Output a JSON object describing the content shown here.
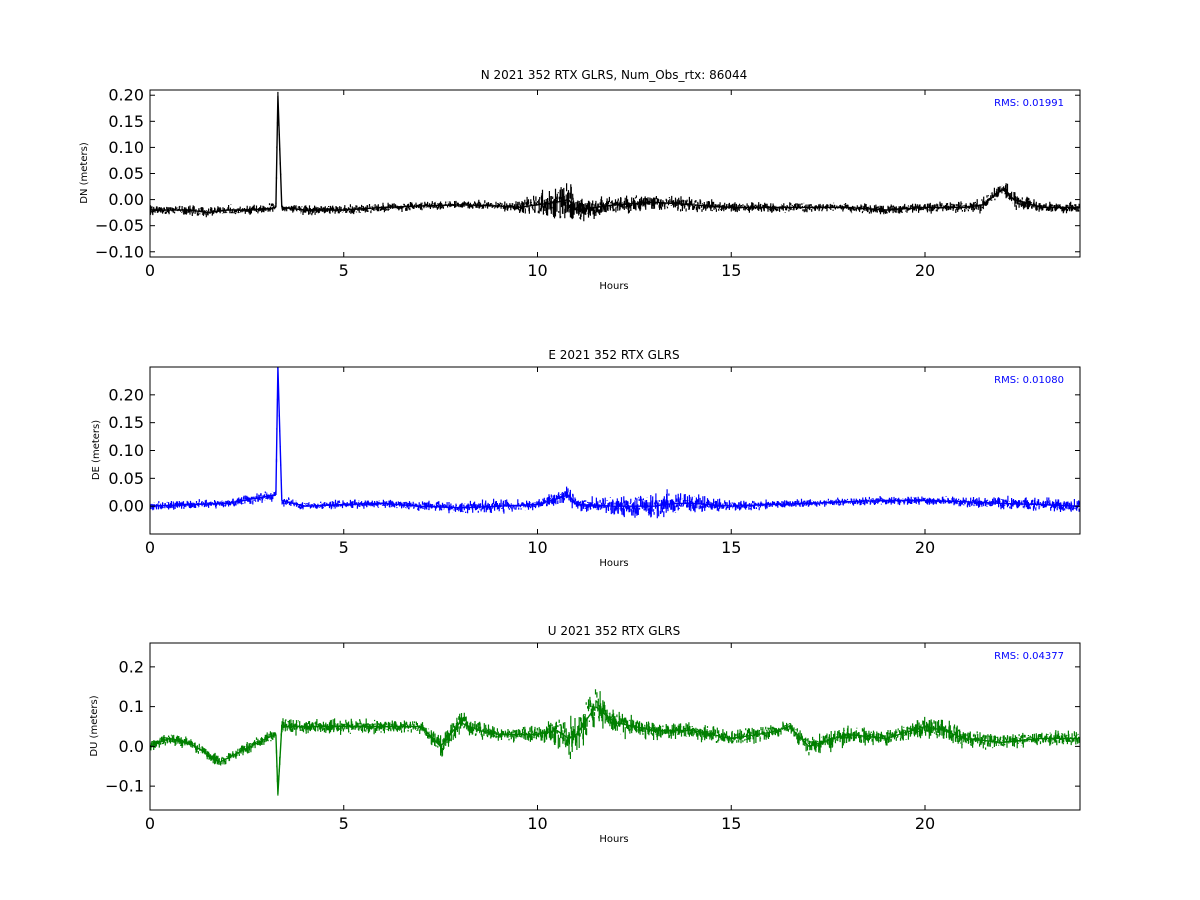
{
  "chart_data": [
    {
      "type": "line",
      "title": "N 2021 352 RTX  GLRS, Num_Obs_rtx: 86044",
      "xlabel": "Hours",
      "ylabel": "DN (meters)",
      "xlim": [
        0,
        24
      ],
      "ylim": [
        -0.11,
        0.21
      ],
      "xticks": [
        0,
        5,
        10,
        15,
        20
      ],
      "yticks": [
        -0.1,
        -0.05,
        0.0,
        0.05,
        0.1,
        0.15,
        0.2
      ],
      "ytick_labels": [
        "−0.10",
        "−0.05",
        "0.00",
        "0.05",
        "0.10",
        "0.15",
        "0.20"
      ],
      "annotation": "RMS:  0.01991",
      "color": "#000000",
      "grid": false,
      "series": [
        {
          "x": [
            0,
            0.5,
            1,
            1.5,
            2,
            2.5,
            3,
            3.25,
            3.3,
            3.4,
            4,
            4.5,
            5,
            6,
            7,
            8,
            9,
            9.5,
            10,
            10.5,
            10.8,
            11,
            11.5,
            12,
            13,
            14,
            15,
            16,
            17,
            18,
            19,
            20,
            21,
            21.5,
            22,
            22.3,
            23,
            24
          ],
          "y": [
            -0.02,
            -0.02,
            -0.02,
            -0.025,
            -0.02,
            -0.02,
            -0.018,
            -0.015,
            0.2,
            -0.015,
            -0.02,
            -0.02,
            -0.02,
            -0.015,
            -0.012,
            -0.01,
            -0.012,
            -0.015,
            -0.01,
            -0.005,
            0.0,
            -0.02,
            -0.015,
            -0.01,
            -0.005,
            -0.01,
            -0.015,
            -0.015,
            -0.015,
            -0.015,
            -0.02,
            -0.015,
            -0.015,
            -0.01,
            0.02,
            0.0,
            -0.015,
            -0.015
          ],
          "spread": [
            0.012,
            0.012,
            0.013,
            0.013,
            0.012,
            0.012,
            0.012,
            0.012,
            0.01,
            0.012,
            0.012,
            0.012,
            0.012,
            0.012,
            0.012,
            0.012,
            0.012,
            0.015,
            0.03,
            0.04,
            0.055,
            0.03,
            0.025,
            0.022,
            0.02,
            0.017,
            0.013,
            0.012,
            0.012,
            0.012,
            0.013,
            0.013,
            0.015,
            0.018,
            0.02,
            0.025,
            0.013,
            0.013
          ]
        }
      ]
    },
    {
      "type": "line",
      "title": "E 2021 352 RTX  GLRS",
      "xlabel": "Hours",
      "ylabel": "DE (meters)",
      "xlim": [
        0,
        24
      ],
      "ylim": [
        -0.05,
        0.25
      ],
      "xticks": [
        0,
        5,
        10,
        15,
        20
      ],
      "yticks": [
        0.0,
        0.05,
        0.1,
        0.15,
        0.2
      ],
      "ytick_labels": [
        "0.00",
        "0.05",
        "0.10",
        "0.15",
        "0.20"
      ],
      "annotation": "RMS:  0.01080",
      "color": "#0000ff",
      "grid": false,
      "series": [
        {
          "x": [
            0,
            1,
            2,
            2.8,
            3.25,
            3.3,
            3.4,
            4,
            5,
            6,
            7,
            8,
            9,
            10,
            10.8,
            11,
            12,
            13,
            13.5,
            14,
            15,
            16,
            17,
            18,
            19,
            20,
            21,
            22,
            23,
            24
          ],
          "y": [
            0.0,
            0.003,
            0.005,
            0.015,
            0.02,
            0.25,
            0.01,
            0.0,
            0.003,
            0.005,
            0.0,
            -0.003,
            0.0,
            0.003,
            0.02,
            0.003,
            0.0,
            0.0,
            0.005,
            0.005,
            0.0,
            0.003,
            0.005,
            0.008,
            0.01,
            0.01,
            0.008,
            0.005,
            0.003,
            0.0
          ],
          "spread": [
            0.012,
            0.01,
            0.01,
            0.012,
            0.012,
            0.01,
            0.012,
            0.01,
            0.01,
            0.01,
            0.012,
            0.015,
            0.015,
            0.012,
            0.02,
            0.015,
            0.02,
            0.03,
            0.03,
            0.022,
            0.012,
            0.01,
            0.01,
            0.01,
            0.01,
            0.01,
            0.012,
            0.015,
            0.015,
            0.015
          ]
        }
      ]
    },
    {
      "type": "line",
      "title": "U 2021 352 RTX  GLRS",
      "xlabel": "Hours",
      "ylabel": "DU (meters)",
      "xlim": [
        0,
        24
      ],
      "ylim": [
        -0.16,
        0.26
      ],
      "xticks": [
        0,
        5,
        10,
        15,
        20
      ],
      "yticks": [
        -0.1,
        0.0,
        0.1,
        0.2
      ],
      "ytick_labels": [
        "−0.1",
        "0.0",
        "0.1",
        "0.2"
      ],
      "annotation": "RMS:  0.04377",
      "color": "#008000",
      "grid": false,
      "series": [
        {
          "x": [
            0,
            0.5,
            1,
            1.5,
            1.8,
            2.2,
            2.6,
            3.0,
            3.25,
            3.3,
            3.4,
            4,
            5,
            6,
            7,
            7.5,
            8,
            8.5,
            9,
            10,
            10.5,
            10.8,
            11,
            11.5,
            12,
            13,
            14,
            15,
            16,
            16.5,
            17,
            18,
            19,
            20,
            20.5,
            21,
            22,
            23,
            24
          ],
          "y": [
            0.0,
            0.02,
            0.01,
            -0.02,
            -0.04,
            -0.02,
            0.0,
            0.02,
            0.03,
            -0.12,
            0.05,
            0.05,
            0.05,
            0.05,
            0.05,
            0.0,
            0.06,
            0.04,
            0.03,
            0.03,
            0.04,
            0.02,
            0.03,
            0.1,
            0.06,
            0.04,
            0.04,
            0.02,
            0.035,
            0.05,
            0.0,
            0.03,
            0.02,
            0.05,
            0.04,
            0.02,
            0.01,
            0.02,
            0.02
          ],
          "spread": [
            0.02,
            0.02,
            0.02,
            0.02,
            0.02,
            0.02,
            0.02,
            0.02,
            0.02,
            0.02,
            0.03,
            0.025,
            0.025,
            0.022,
            0.022,
            0.04,
            0.04,
            0.03,
            0.025,
            0.025,
            0.05,
            0.07,
            0.06,
            0.07,
            0.04,
            0.03,
            0.03,
            0.025,
            0.025,
            0.025,
            0.03,
            0.035,
            0.025,
            0.04,
            0.04,
            0.035,
            0.025,
            0.025,
            0.025
          ]
        }
      ]
    }
  ]
}
